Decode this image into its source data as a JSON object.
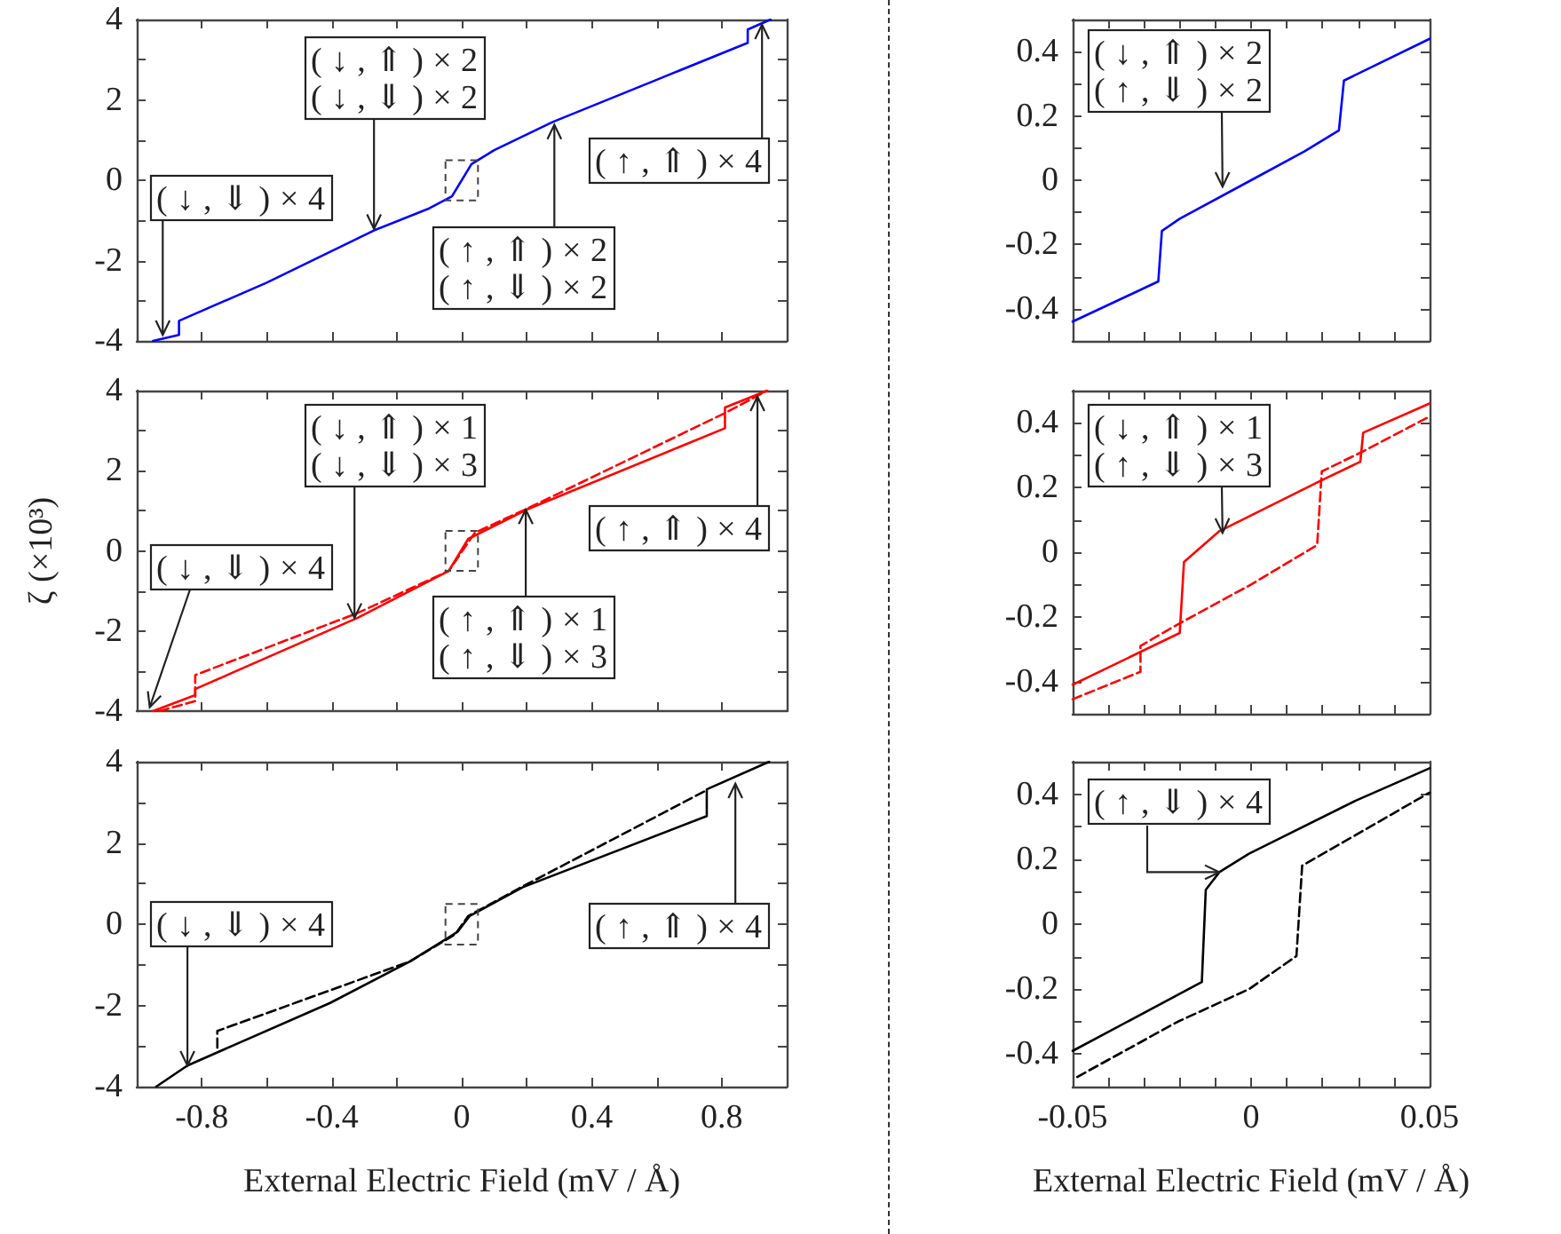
{
  "chart_data": [
    {
      "type": "line",
      "xlim": [
        -1,
        1
      ],
      "ylim": [
        -4,
        4
      ],
      "tick_labels": "y",
      "xticks": [
        -0.8,
        {
          "value": -0.6,
          "label": null
        },
        -0.4,
        {
          "value": -0.2,
          "label": null
        },
        0,
        {
          "value": 0.2,
          "label": null
        },
        0.4,
        {
          "value": 0.6,
          "label": null
        },
        0.8
      ],
      "yticks": [
        -4,
        {
          "value": -3,
          "label": null
        },
        -2,
        {
          "value": -1,
          "label": null
        },
        0,
        {
          "value": 1,
          "label": null
        },
        2,
        {
          "value": 3,
          "label": null
        },
        4
      ],
      "series": [
        {
          "color": "#0000ff",
          "line_style": "solid",
          "x": [
            -0.95,
            -0.87,
            -0.87,
            -0.6,
            -0.27,
            -0.1,
            -0.03,
            0.03,
            0.1,
            0.28,
            0.6,
            0.88,
            0.88,
            0.95
          ],
          "values": [
            -4.0,
            -3.85,
            -3.5,
            -2.55,
            -1.25,
            -0.7,
            -0.4,
            0.4,
            0.75,
            1.45,
            2.5,
            3.42,
            3.75,
            4.0
          ]
        }
      ],
      "annotations": [
        {
          "text": "(↓,⇓)×4",
          "x": -0.92,
          "y": -3.85
        },
        {
          "text": "(↓,⇑)×2\n(↓,⇓)×2",
          "x": -0.27,
          "y": -1.21
        },
        {
          "text": "(↑,⇑)×2\n(↑,⇓)×2",
          "x": 0.285,
          "y": 1.38
        },
        {
          "text": "(↑,⇑)×4",
          "x": 0.924,
          "y": 3.87
        }
      ]
    },
    {
      "type": "line",
      "xlim": [
        -0.05,
        0.05
      ],
      "ylim": [
        -0.5,
        0.5
      ],
      "tick_labels": "y",
      "xticks": [
        -0.05,
        {
          "value": -0.04,
          "label": null
        },
        {
          "value": -0.03,
          "label": null
        },
        {
          "value": -0.02,
          "label": null
        },
        {
          "value": -0.01,
          "label": null
        },
        0,
        {
          "value": 0.01,
          "label": null
        },
        {
          "value": 0.02,
          "label": null
        },
        {
          "value": 0.03,
          "label": null
        },
        {
          "value": 0.04,
          "label": null
        },
        0.05
      ],
      "yticks": [
        {
          "value": -0.5,
          "label": null
        },
        -0.4,
        {
          "value": -0.3,
          "label": null
        },
        -0.2,
        {
          "value": -0.1,
          "label": null
        },
        0,
        {
          "value": 0.1,
          "label": null
        },
        0.2,
        {
          "value": 0.3,
          "label": null
        },
        0.4,
        {
          "value": 0.5,
          "label": null
        }
      ],
      "series": [
        {
          "color": "#0000ff",
          "line_style": "solid",
          "x": [
            -0.05,
            -0.026,
            -0.025,
            -0.02,
            0,
            0.015,
            0.0246,
            0.026,
            0.05
          ],
          "values": [
            -0.44,
            -0.315,
            -0.158,
            -0.12,
            0.0,
            0.09,
            0.155,
            0.31,
            0.44
          ]
        }
      ],
      "annotations": [
        {
          "text": "(↓,⇑)×2\n(↑,⇓)×2",
          "x": -0.008,
          "y": -0.02
        }
      ]
    },
    {
      "type": "line",
      "xlim": [
        -1,
        1
      ],
      "ylim": [
        -4,
        4
      ],
      "tick_labels": "y",
      "ylabel": "ζ (×10³)",
      "xticks": [
        -0.8,
        {
          "value": -0.6,
          "label": null
        },
        -0.4,
        {
          "value": -0.2,
          "label": null
        },
        0,
        {
          "value": 0.2,
          "label": null
        },
        0.4,
        {
          "value": 0.6,
          "label": null
        },
        0.8
      ],
      "yticks": [
        -4,
        {
          "value": -3,
          "label": null
        },
        -2,
        {
          "value": -1,
          "label": null
        },
        0,
        {
          "value": 1,
          "label": null
        },
        2,
        {
          "value": 3,
          "label": null
        },
        4
      ],
      "series": [
        {
          "color": "#ff0000",
          "line_style": "solid",
          "x": [
            -0.95,
            -0.82,
            -0.82,
            -0.32,
            -0.04,
            0.02,
            0.2,
            0.81,
            0.81,
            0.94
          ],
          "values": [
            -4.0,
            -3.6,
            -3.45,
            -1.67,
            -0.5,
            0.3,
            1.03,
            3.06,
            3.58,
            4.0
          ]
        },
        {
          "color": "#ff0000",
          "line_style": "dashed",
          "x": [
            -0.93,
            -0.82,
            -0.82,
            -0.32,
            -0.04,
            0.04,
            0.2,
            0.81,
            0.94
          ],
          "values": [
            -4.0,
            -3.75,
            -3.1,
            -1.55,
            -0.5,
            0.45,
            1.05,
            3.44,
            4.0
          ]
        }
      ],
      "annotations": [
        {
          "text": "(↓,⇓)×4",
          "x": -0.96,
          "y": -3.9
        },
        {
          "text": "(↓,⇑)×1\n(↓,⇓)×3",
          "x": -0.33,
          "y": -1.67
        },
        {
          "text": "(↑,⇑)×1\n(↑,⇓)×3",
          "x": 0.197,
          "y": 1.03
        },
        {
          "text": "(↑,⇑)×4",
          "x": 0.91,
          "y": 3.85
        }
      ]
    },
    {
      "type": "line",
      "xlim": [
        -0.05,
        0.05
      ],
      "ylim": [
        -0.5,
        0.5
      ],
      "tick_labels": "y",
      "xticks": [
        -0.05,
        {
          "value": -0.04,
          "label": null
        },
        {
          "value": -0.03,
          "label": null
        },
        {
          "value": -0.02,
          "label": null
        },
        {
          "value": -0.01,
          "label": null
        },
        0,
        {
          "value": 0.01,
          "label": null
        },
        {
          "value": 0.02,
          "label": null
        },
        {
          "value": 0.03,
          "label": null
        },
        {
          "value": 0.04,
          "label": null
        },
        0.05
      ],
      "yticks": [
        {
          "value": -0.5,
          "label": null
        },
        -0.4,
        {
          "value": -0.3,
          "label": null
        },
        -0.2,
        {
          "value": -0.1,
          "label": null
        },
        0,
        {
          "value": 0.1,
          "label": null
        },
        0.2,
        {
          "value": 0.3,
          "label": null
        },
        0.4,
        {
          "value": 0.5,
          "label": null
        }
      ],
      "series": [
        {
          "color": "#ff0000",
          "line_style": "solid",
          "x": [
            -0.05,
            -0.02,
            -0.0188,
            -0.0089,
            0.0193,
            0.0306,
            0.0314,
            0.05
          ],
          "values": [
            -0.41,
            -0.25,
            -0.03,
            0.065,
            0.22,
            0.28,
            0.37,
            0.46
          ]
        },
        {
          "color": "#ff0000",
          "line_style": "dashed",
          "x": [
            -0.05,
            -0.031,
            -0.031,
            -0.02,
            0,
            0.0185,
            0.0198,
            0.031,
            0.05
          ],
          "values": [
            -0.455,
            -0.37,
            -0.29,
            -0.22,
            -0.1,
            0.022,
            0.25,
            0.31,
            0.42
          ]
        }
      ],
      "annotations": [
        {
          "text": "(↓,⇑)×1\n(↑,⇓)×3",
          "x": -0.008,
          "y": 0.06
        }
      ]
    },
    {
      "type": "line",
      "xlim": [
        -1,
        1
      ],
      "ylim": [
        -4,
        4
      ],
      "xlabel": "External Electric Field (mV / Å)",
      "xticks": [
        -0.8,
        {
          "value": -0.6,
          "label": null
        },
        -0.4,
        {
          "value": -0.2,
          "label": null
        },
        0,
        {
          "value": 0.2,
          "label": null
        },
        0.4,
        {
          "value": 0.6,
          "label": null
        },
        0.8
      ],
      "yticks": [
        -4,
        {
          "value": -3,
          "label": null
        },
        -2,
        {
          "value": -1,
          "label": null
        },
        0,
        {
          "value": 1,
          "label": null
        },
        2,
        {
          "value": 3,
          "label": null
        },
        4
      ],
      "series": [
        {
          "color": "#000000",
          "line_style": "solid",
          "x": [
            -0.94,
            -0.844,
            -0.405,
            -0.16,
            -0.013,
            0.024,
            0.188,
            0.754,
            0.754,
            0.946
          ],
          "values": [
            -4.0,
            -3.48,
            -1.94,
            -0.92,
            -0.19,
            0.2,
            0.91,
            2.66,
            3.32,
            4.0
          ]
        },
        {
          "color": "#000000",
          "line_style": "dashed",
          "x": [
            -0.752,
            -0.752,
            -0.16,
            -0.02,
            0.02,
            0.188,
            0.754
          ],
          "values": [
            -3.04,
            -2.63,
            -0.92,
            -0.25,
            0.2,
            0.93,
            3.3
          ]
        }
      ],
      "annotations": [
        {
          "text": "(↓,⇓)×4",
          "x": -0.844,
          "y": -3.48
        },
        {
          "text": "(↑,⇑)×4",
          "x": 0.842,
          "y": 3.46
        }
      ]
    },
    {
      "type": "line",
      "xlim": [
        -0.05,
        0.05
      ],
      "ylim": [
        -0.5,
        0.5
      ],
      "xlabel": "External Electric Field (mV / Å)",
      "xticks": [
        -0.05,
        {
          "value": -0.04,
          "label": null
        },
        {
          "value": -0.03,
          "label": null
        },
        {
          "value": -0.02,
          "label": null
        },
        {
          "value": -0.01,
          "label": null
        },
        0,
        {
          "value": 0.01,
          "label": null
        },
        {
          "value": 0.02,
          "label": null
        },
        {
          "value": 0.03,
          "label": null
        },
        {
          "value": 0.04,
          "label": null
        },
        0.05
      ],
      "yticks": [
        {
          "value": -0.5,
          "label": null
        },
        -0.4,
        {
          "value": -0.3,
          "label": null
        },
        -0.2,
        {
          "value": -0.1,
          "label": null
        },
        0,
        {
          "value": 0.1,
          "label": null
        },
        0.2,
        {
          "value": 0.3,
          "label": null
        },
        0.4,
        {
          "value": 0.5,
          "label": null
        }
      ],
      "series": [
        {
          "color": "#000000",
          "line_style": "solid",
          "x": [
            -0.05,
            -0.0138,
            -0.0127,
            -0.0089,
            -0.0006,
            0.0293,
            0.05
          ],
          "values": [
            -0.39,
            -0.178,
            0.106,
            0.16,
            0.217,
            0.38,
            0.48
          ]
        },
        {
          "color": "#000000",
          "line_style": "dashed",
          "x": [
            -0.0487,
            -0.0205,
            -0.0006,
            0.0127,
            0.0143,
            0.05
          ],
          "values": [
            -0.47,
            -0.3,
            -0.2,
            -0.098,
            0.18,
            0.405
          ]
        }
      ],
      "annotations": [
        {
          "text": "(↑,⇓)×4",
          "x": -0.0089,
          "y": 0.16
        }
      ]
    }
  ]
}
